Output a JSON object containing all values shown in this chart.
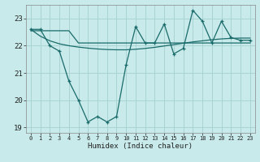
{
  "xlabel": "Humidex (Indice chaleur)",
  "bg_color": "#c8eaea",
  "grid_color": "#aad4d4",
  "line_color": "#1a6b6b",
  "x": [
    0,
    1,
    2,
    3,
    4,
    5,
    6,
    7,
    8,
    9,
    10,
    11,
    12,
    13,
    14,
    15,
    16,
    17,
    18,
    19,
    20,
    21,
    22,
    23
  ],
  "y_main": [
    22.6,
    22.6,
    22.0,
    21.8,
    20.7,
    20.0,
    19.2,
    19.4,
    19.2,
    19.4,
    21.3,
    22.7,
    22.1,
    22.1,
    22.8,
    21.7,
    21.9,
    23.3,
    22.9,
    22.1,
    22.9,
    22.3,
    22.2,
    22.2
  ],
  "y_reg1": [
    22.55,
    22.55,
    22.55,
    22.55,
    22.55,
    22.1,
    22.1,
    22.1,
    22.1,
    22.1,
    22.1,
    22.1,
    22.1,
    22.1,
    22.1,
    22.1,
    22.1,
    22.1,
    22.1,
    22.1,
    22.1,
    22.1,
    22.1,
    22.1
  ],
  "y_reg2": [
    22.6,
    22.35,
    22.18,
    22.07,
    22.0,
    21.95,
    21.91,
    21.88,
    21.86,
    21.85,
    21.85,
    21.87,
    21.9,
    21.94,
    21.99,
    22.04,
    22.09,
    22.14,
    22.18,
    22.22,
    22.25,
    22.27,
    22.28,
    22.28
  ],
  "ylim": [
    18.8,
    23.5
  ],
  "yticks": [
    19,
    20,
    21,
    22,
    23
  ],
  "xlim": [
    -0.5,
    23.5
  ],
  "xticks": [
    0,
    1,
    2,
    3,
    4,
    5,
    6,
    7,
    8,
    9,
    10,
    11,
    12,
    13,
    14,
    15,
    16,
    17,
    18,
    19,
    20,
    21,
    22,
    23
  ]
}
